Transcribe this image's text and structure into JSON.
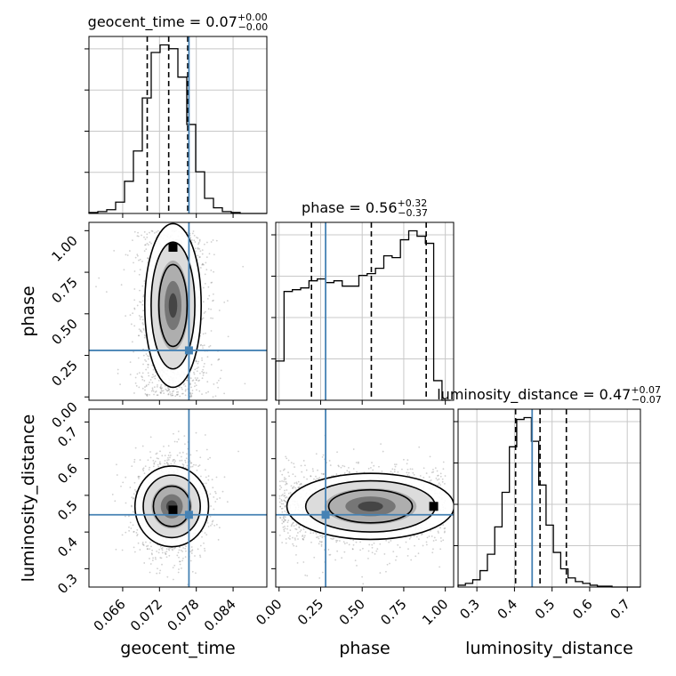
{
  "chart_data": {
    "type": "corner",
    "title": "",
    "truth_color": "#4682b4",
    "parameters": [
      {
        "name": "geocent_time",
        "label": "geocent_time",
        "title_main": "geocent_time = 0.07",
        "title_sup": "+0.00",
        "title_sub": "−0.00",
        "range": [
          0.0605,
          0.0895
        ],
        "ticks": [
          0.066,
          0.072,
          0.078,
          0.084
        ],
        "tick_labels": [
          "0.066",
          "0.072",
          "0.078",
          "0.084"
        ],
        "truth": 0.0768,
        "quantiles": [
          0.07,
          0.0735,
          0.0766
        ],
        "hist_edges_start": 0.0605,
        "hist_bin_width": 0.00145,
        "hist_counts": [
          0.5,
          1,
          2,
          6,
          17,
          33,
          61,
          85,
          89,
          87,
          72,
          47,
          22,
          8,
          3,
          1,
          0.5,
          0,
          0,
          0
        ]
      },
      {
        "name": "phase",
        "label": "phase",
        "title_main": "phase = 0.56",
        "title_sup": "+0.32",
        "title_sub": "−0.37",
        "range": [
          -0.02,
          1.05
        ],
        "ticks": [
          0.0,
          0.25,
          0.5,
          0.75,
          1.0
        ],
        "tick_labels": [
          "0.00",
          "0.25",
          "0.50",
          "0.75",
          "1.00"
        ],
        "truth": 0.28,
        "quantiles": [
          0.195,
          0.555,
          0.885
        ],
        "hist_edges_start": -0.02,
        "hist_bin_width": 0.05,
        "hist_counts": [
          22,
          61,
          62,
          63,
          67,
          68,
          66,
          67,
          64,
          64,
          70,
          71,
          74,
          81,
          80,
          90,
          95,
          92,
          88,
          11,
          0
        ]
      },
      {
        "name": "luminosity_distance",
        "label": "luminosity_distance",
        "title_main": "luminosity_distance = 0.47",
        "title_sup": "+0.07",
        "title_sub": "−0.07",
        "range": [
          0.25,
          0.735
        ],
        "ticks": [
          0.3,
          0.4,
          0.5,
          0.6,
          0.7
        ],
        "tick_labels": [
          "0.3",
          "0.4",
          "0.5",
          "0.6",
          "0.7"
        ],
        "truth": 0.447,
        "quantiles": [
          0.403,
          0.468,
          0.538
        ],
        "hist_edges_start": 0.25,
        "hist_bin_width": 0.0195,
        "hist_counts": [
          1,
          2,
          4,
          9,
          18,
          33,
          52,
          77,
          92,
          93,
          80,
          56,
          34,
          19,
          10,
          5,
          3,
          2,
          1,
          0.5,
          0.5,
          0,
          0,
          0,
          0
        ]
      }
    ],
    "pairs": [
      {
        "x": "geocent_time",
        "y": "phase",
        "mean": [
          0.0742,
          0.55
        ],
        "sd": [
          0.0023,
          0.3
        ],
        "y_uniform": true,
        "density_peak": [
          0.0742,
          0.9
        ]
      },
      {
        "x": "geocent_time",
        "y": "luminosity_distance",
        "mean": [
          0.074,
          0.47
        ],
        "sd": [
          0.003,
          0.055
        ],
        "y_uniform": false,
        "density_peak": [
          0.0742,
          0.46
        ]
      },
      {
        "x": "phase",
        "y": "luminosity_distance",
        "mean": [
          0.55,
          0.47
        ],
        "sd": [
          0.3,
          0.045
        ],
        "x_uniform": true,
        "density_peak": [
          0.93,
          0.47
        ]
      }
    ]
  }
}
